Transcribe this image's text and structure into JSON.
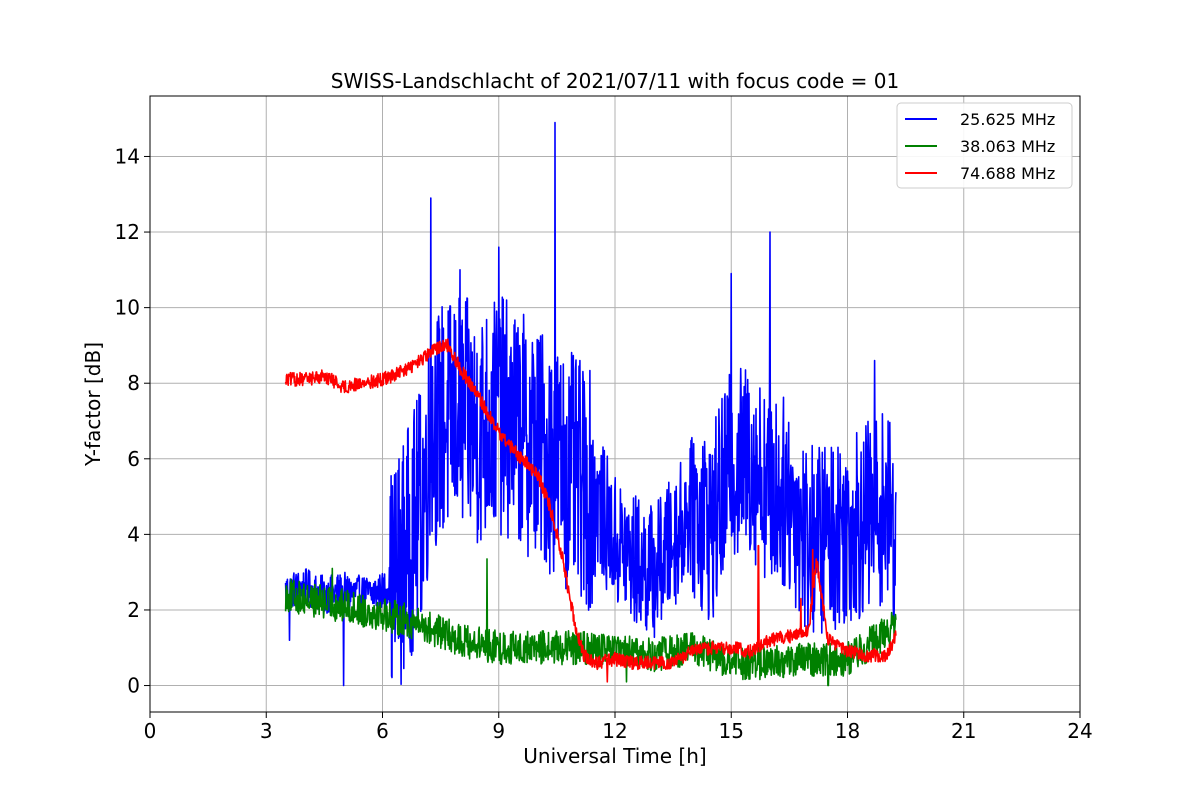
{
  "chart_data": {
    "type": "line",
    "title": "SWISS-Landschlacht of 2021/07/11 with focus code = 01",
    "xlabel": "Universal Time [h]",
    "ylabel": "Y-factor [dB]",
    "xlim": [
      0,
      24
    ],
    "ylim": [
      -0.7,
      15.6
    ],
    "xticks": [
      0,
      3,
      6,
      9,
      12,
      15,
      18,
      21,
      24
    ],
    "yticks": [
      0,
      2,
      4,
      6,
      8,
      10,
      12,
      14
    ],
    "grid": true,
    "legend_position": "top-right",
    "series": [
      {
        "name": "25.625 MHz",
        "color": "#0000ff",
        "x": [
          3.5,
          4.0,
          4.5,
          5.0,
          5.5,
          6.0,
          6.3,
          6.6,
          7.0,
          7.3,
          7.6,
          8.0,
          8.5,
          9.0,
          9.5,
          10.0,
          10.5,
          11.0,
          11.5,
          12.0,
          12.5,
          13.0,
          13.5,
          14.0,
          14.5,
          15.0,
          15.5,
          16.0,
          16.5,
          17.0,
          17.5,
          18.0,
          18.5,
          19.0,
          19.25
        ],
        "y": [
          2.5,
          2.6,
          2.4,
          2.5,
          2.4,
          2.5,
          2.8,
          3.5,
          4.8,
          6.8,
          7.0,
          7.2,
          6.8,
          7.2,
          6.8,
          6.4,
          6.0,
          5.5,
          5.0,
          3.8,
          3.3,
          3.0,
          3.8,
          4.8,
          4.2,
          5.8,
          6.0,
          5.2,
          5.0,
          3.8,
          4.0,
          4.2,
          4.4,
          4.8,
          3.8
        ],
        "spikes": [
          [
            7.25,
            12.9
          ],
          [
            8.0,
            11.0
          ],
          [
            9.0,
            11.6
          ],
          [
            10.45,
            14.9
          ],
          [
            16.0,
            12.0
          ],
          [
            15.0,
            10.9
          ],
          [
            18.7,
            8.6
          ],
          [
            6.2,
            5.0
          ],
          [
            5.0,
            0.0
          ],
          [
            3.6,
            1.2
          ]
        ]
      },
      {
        "name": "38.063 MHz",
        "color": "#008000",
        "x": [
          3.5,
          4.0,
          5.0,
          6.0,
          7.0,
          8.0,
          9.0,
          10.0,
          11.0,
          12.0,
          13.0,
          14.0,
          15.0,
          16.0,
          17.0,
          18.0,
          19.0,
          19.25
        ],
        "y": [
          2.4,
          2.3,
          2.1,
          1.9,
          1.6,
          1.2,
          1.0,
          1.0,
          1.0,
          0.9,
          0.8,
          1.0,
          0.6,
          0.6,
          0.7,
          0.7,
          1.4,
          1.6
        ],
        "spikes": [
          [
            8.7,
            3.35
          ],
          [
            4.7,
            3.1
          ],
          [
            12.3,
            0.1
          ],
          [
            17.5,
            0.0
          ]
        ]
      },
      {
        "name": "74.688 MHz",
        "color": "#ff0000",
        "x": [
          3.5,
          4.0,
          4.5,
          5.0,
          5.5,
          6.0,
          6.5,
          7.0,
          7.5,
          7.7,
          8.0,
          8.5,
          9.0,
          9.5,
          10.0,
          10.3,
          10.6,
          10.8,
          11.0,
          11.2,
          11.5,
          12.0,
          12.5,
          13.0,
          13.5,
          14.0,
          14.5,
          15.0,
          15.5,
          16.0,
          16.5,
          17.0,
          17.2,
          17.5,
          18.0,
          18.5,
          19.0,
          19.25
        ],
        "y": [
          8.1,
          8.1,
          8.2,
          7.9,
          8.0,
          8.1,
          8.3,
          8.6,
          9.0,
          9.0,
          8.4,
          7.6,
          6.7,
          6.1,
          5.6,
          4.8,
          3.6,
          2.5,
          1.5,
          0.8,
          0.6,
          0.7,
          0.6,
          0.6,
          0.6,
          0.9,
          1.0,
          1.0,
          0.9,
          1.2,
          1.3,
          1.5,
          3.3,
          1.2,
          0.9,
          0.8,
          0.8,
          1.3
        ],
        "spikes": [
          [
            15.7,
            3.7
          ],
          [
            17.1,
            3.6
          ],
          [
            16.8,
            2.3
          ],
          [
            11.8,
            0.1
          ]
        ]
      }
    ]
  }
}
